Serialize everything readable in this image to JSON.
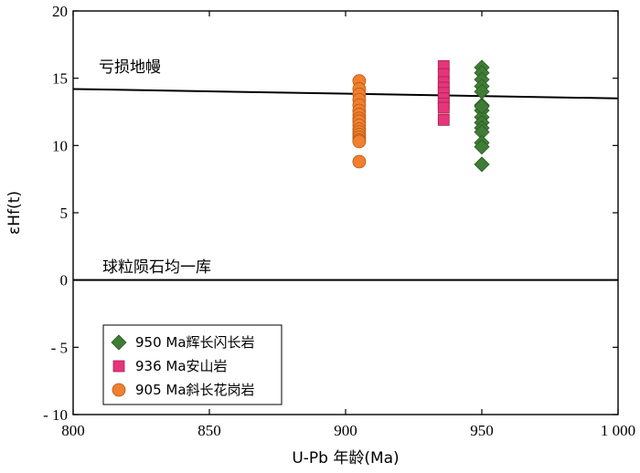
{
  "chart_data": {
    "type": "scatter",
    "xlabel": "U-Pb 年龄(Ma)",
    "ylabel": "εHf(t)",
    "xlim": [
      800,
      1000
    ],
    "ylim": [
      -10,
      20
    ],
    "x_ticks": [
      800,
      850,
      900,
      950,
      1000
    ],
    "x_tick_labels": [
      "800",
      "850",
      "900",
      "950",
      "1 000"
    ],
    "y_ticks": [
      -10,
      -5,
      0,
      5,
      10,
      15,
      20
    ],
    "y_tick_labels": [
      "- 10",
      "- 5",
      "0",
      "5",
      "10",
      "15",
      "20"
    ],
    "grid": false,
    "legend_position": "bottom-left",
    "lines": [
      {
        "label": "亏损地幔",
        "x": [
          800,
          1000
        ],
        "y": [
          14.2,
          13.5
        ]
      },
      {
        "label": "球粒陨石均一库",
        "x": [
          800,
          1000
        ],
        "y": [
          0,
          0
        ]
      }
    ],
    "series": [
      {
        "name": "950 Ma辉长闪长岩",
        "marker": "diamond",
        "color": "#3f7d36",
        "x": [
          950,
          950,
          950,
          950,
          950,
          950,
          950,
          950,
          950,
          950,
          950,
          950,
          950,
          950,
          950
        ],
        "y": [
          15.8,
          15.4,
          14.9,
          14.4,
          14.0,
          13.0,
          12.6,
          12.1,
          11.7,
          11.3,
          11.0,
          10.2,
          9.9,
          8.6,
          12.9
        ]
      },
      {
        "name": "936 Ma安山岩",
        "marker": "square",
        "color": "#e6357a",
        "x": [
          936,
          936,
          936,
          936,
          936,
          936,
          936,
          936,
          936
        ],
        "y": [
          15.9,
          15.3,
          14.7,
          14.3,
          13.9,
          13.5,
          13.1,
          12.8,
          11.9
        ]
      },
      {
        "name": "905 Ma斜长花岗岩",
        "marker": "circle",
        "color": "#f07f2e",
        "x": [
          905,
          905,
          905,
          905,
          905,
          905,
          905,
          905,
          905,
          905,
          905,
          905,
          905,
          905,
          905,
          905,
          905
        ],
        "y": [
          14.8,
          14.2,
          13.8,
          13.4,
          13.0,
          12.6,
          12.3,
          12.0,
          11.8,
          11.5,
          11.2,
          11.0,
          10.8,
          10.6,
          10.4,
          10.3,
          8.8
        ]
      }
    ]
  }
}
